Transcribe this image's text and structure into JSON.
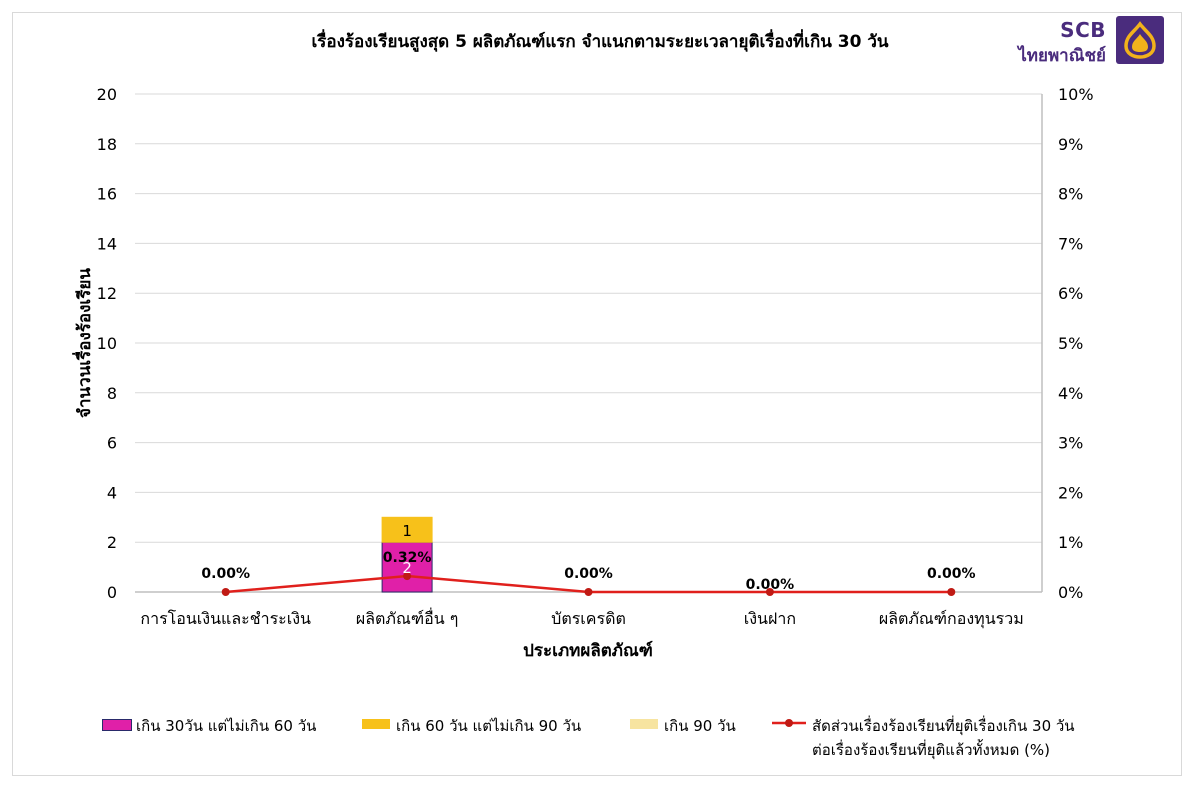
{
  "chart_data": {
    "type": "bar",
    "title": "เรื่องร้องเรียนสูงสุด 5 ผลิตภัณฑ์แรก จำแนกตามระยะเวลายุติเรื่องที่เกิน 30 วัน",
    "xlabel": "ประเภทผลิตภัณฑ์",
    "ylabel": "จำนวนเรื่องร้องเรียน",
    "categories": [
      "การโอนเงินและชำระเงิน",
      "ผลิตภัณฑ์อื่น ๆ",
      "บัตรเครดิต",
      "เงินฝาก",
      "ผลิตภัณฑ์กองทุนรวม"
    ],
    "ylim": [
      0,
      20
    ],
    "y_ticks": [
      "0",
      "2",
      "4",
      "6",
      "8",
      "10",
      "12",
      "14",
      "16",
      "18",
      "20"
    ],
    "y2lim": [
      0,
      10
    ],
    "y2_ticks": [
      "0%",
      "1%",
      "2%",
      "3%",
      "4%",
      "5%",
      "6%",
      "7%",
      "8%",
      "9%",
      "10%"
    ],
    "stacked": true,
    "series": [
      {
        "name": "เกิน 30วัน แต่ไม่เกิน 60 วัน",
        "color": "#e020a8",
        "values": [
          0,
          2,
          0,
          0,
          0
        ],
        "labels": [
          "",
          "2",
          "",
          "",
          ""
        ]
      },
      {
        "name": "เกิน 60 วัน แต่ไม่เกิน 90 วัน",
        "color": "#f7c11a",
        "values": [
          0,
          1,
          0,
          0,
          0
        ],
        "labels": [
          "",
          "1",
          "",
          "",
          ""
        ]
      },
      {
        "name": "เกิน 90 วัน",
        "color": "#f7e4a0",
        "values": [
          0,
          0,
          0,
          0,
          0
        ],
        "labels": [
          "",
          "",
          "",
          "",
          ""
        ]
      }
    ],
    "line_series": {
      "name_line1": "สัดส่วนเรื่องร้องเรียนที่ยุติเรื่องเกิน 30 วัน",
      "name_line2": "ต่อเรื่องร้องเรียนที่ยุติแล้วทั้งหมด (%)",
      "color": "#e0201c",
      "values": [
        0.0,
        0.32,
        0.0,
        0.0,
        0.0
      ],
      "labels": [
        "0.00%",
        "0.32%",
        "0.00%",
        "0.00%",
        "0.00%"
      ]
    },
    "grid": true,
    "legend_position": "bottom"
  },
  "logo": {
    "top": "SCB",
    "bottom": "ไทยพาณิชย์"
  },
  "legend": {
    "item1": "เกิน 30วัน แต่ไม่เกิน 60 วัน",
    "item2": "เกิน 60 วัน แต่ไม่เกิน 90 วัน",
    "item3": "เกิน 90 วัน",
    "item4_line1": "สัดส่วนเรื่องร้องเรียนที่ยุติเรื่องเกิน 30 วัน",
    "item4_line2": "ต่อเรื่องร้องเรียนที่ยุติแล้วทั้งหมด (%)"
  }
}
